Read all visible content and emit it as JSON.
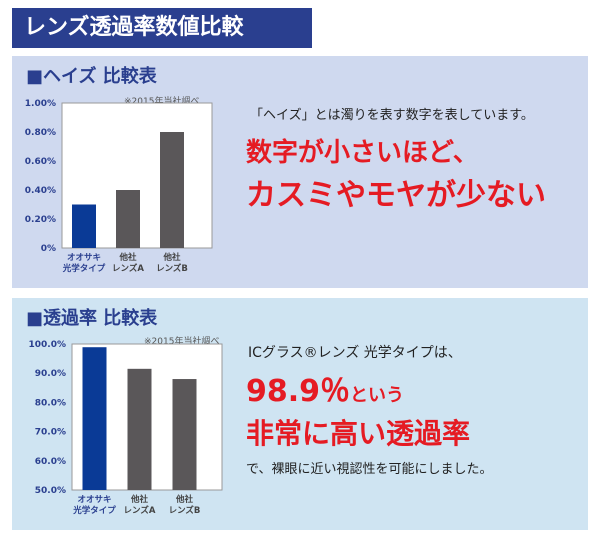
{
  "page_title": "レンズ透過率数値比較",
  "haze": {
    "heading": "■ヘイズ 比較表",
    "note": "※2015年当社調べ",
    "desc": "「ヘイズ」とは濁りを表す数字を表しています。",
    "emph_line1": "数字が小さいほど、",
    "emph_line2": "カスミやモヤが少ない"
  },
  "transmittance": {
    "heading": "■透過率 比較表",
    "note": "※2015年当社調べ",
    "intro": "ICグラス®レンズ 光学タイプは、",
    "value_text": "98.9％",
    "value_suffix": "という",
    "emph_line": "非常に高い透過率",
    "desc": "で、裸眼に近い視認性を可能にしました。"
  },
  "colors": {
    "highlight": "#0a3a96",
    "other": "#5a5759",
    "accent": "#e51b23",
    "title_bg": "#2a3f8f"
  },
  "chart_data": [
    {
      "type": "bar",
      "categories": [
        "オオサキ\n光学タイプ",
        "他社\nレンズA",
        "他社\nレンズB"
      ],
      "values": [
        0.3,
        0.4,
        0.8
      ],
      "ylim": [
        0,
        1.0
      ],
      "yticks": [
        "0%",
        "0.20%",
        "0.40%",
        "0.60%",
        "0.80%",
        "1.00%"
      ],
      "title": "",
      "xlabel": "",
      "ylabel": "",
      "grid": false
    },
    {
      "type": "bar",
      "categories": [
        "オオサキ\n光学タイプ",
        "他社\nレンズA",
        "他社\nレンズB"
      ],
      "values": [
        98.9,
        91.5,
        88.0
      ],
      "ylim": [
        50,
        100
      ],
      "yticks": [
        "50.0%",
        "60.0%",
        "70.0%",
        "80.0%",
        "90.0%",
        "100.0%"
      ],
      "title": "",
      "xlabel": "",
      "ylabel": "",
      "grid": false
    }
  ]
}
